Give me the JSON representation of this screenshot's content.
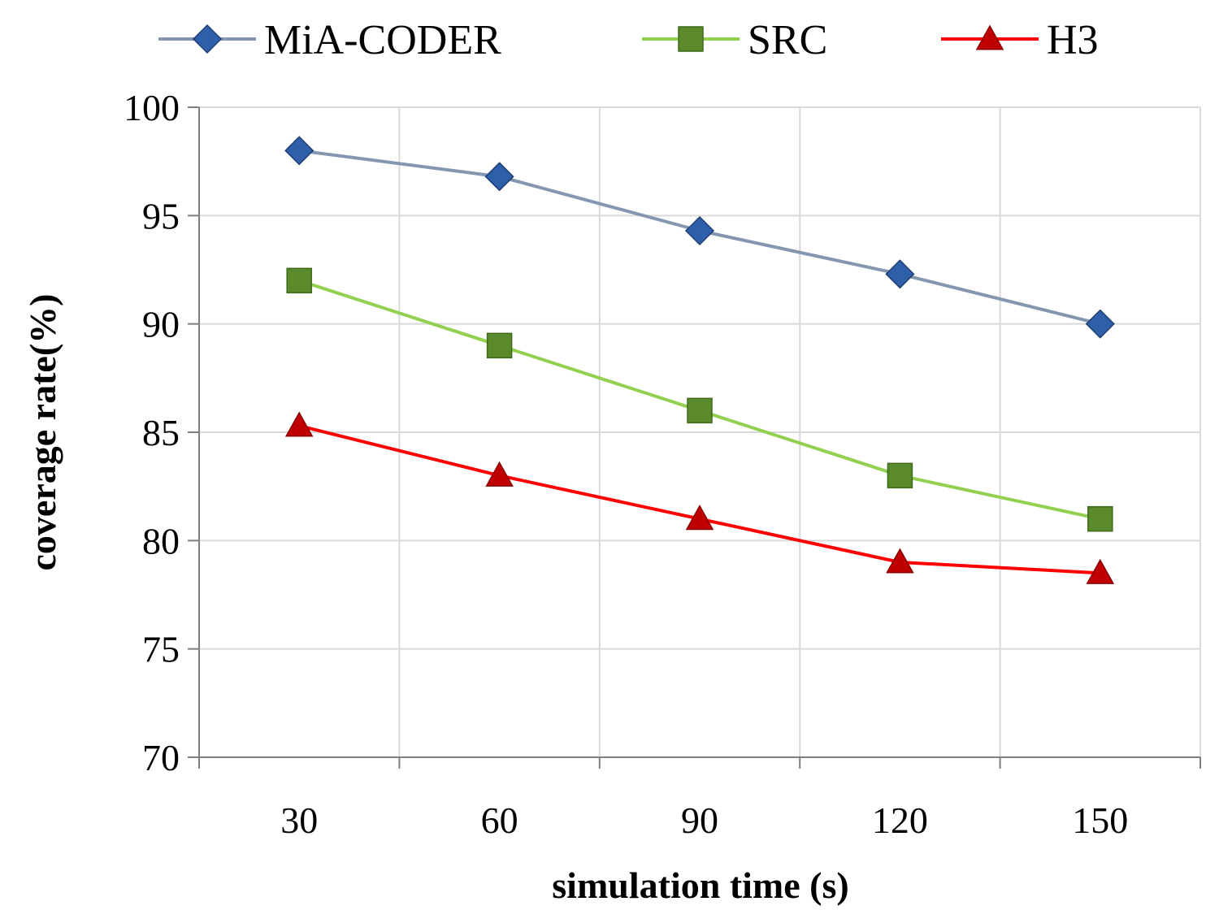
{
  "chart_data": {
    "type": "line",
    "title": "",
    "xlabel": "simulation time (s)",
    "ylabel": "coverage rate(%)",
    "categories": [
      "30",
      "60",
      "90",
      "120",
      "150"
    ],
    "ylim": [
      70,
      100
    ],
    "yticks": [
      70,
      75,
      80,
      85,
      90,
      95,
      100
    ],
    "grid": true,
    "legend_position": "top",
    "series": [
      {
        "name": "MiA-CODER",
        "values": [
          98.0,
          96.8,
          94.3,
          92.3,
          90.0
        ],
        "color": "#8496b0",
        "marker": "diamond",
        "marker_color": "#2e5fa8"
      },
      {
        "name": "SRC",
        "values": [
          92.0,
          89.0,
          86.0,
          83.0,
          81.0
        ],
        "color": "#92d050",
        "marker": "square",
        "marker_color": "#5a8a2a"
      },
      {
        "name": "H3",
        "values": [
          85.3,
          83.0,
          81.0,
          79.0,
          78.5
        ],
        "color": "#ff0000",
        "marker": "triangle",
        "marker_color": "#c00000"
      }
    ]
  }
}
